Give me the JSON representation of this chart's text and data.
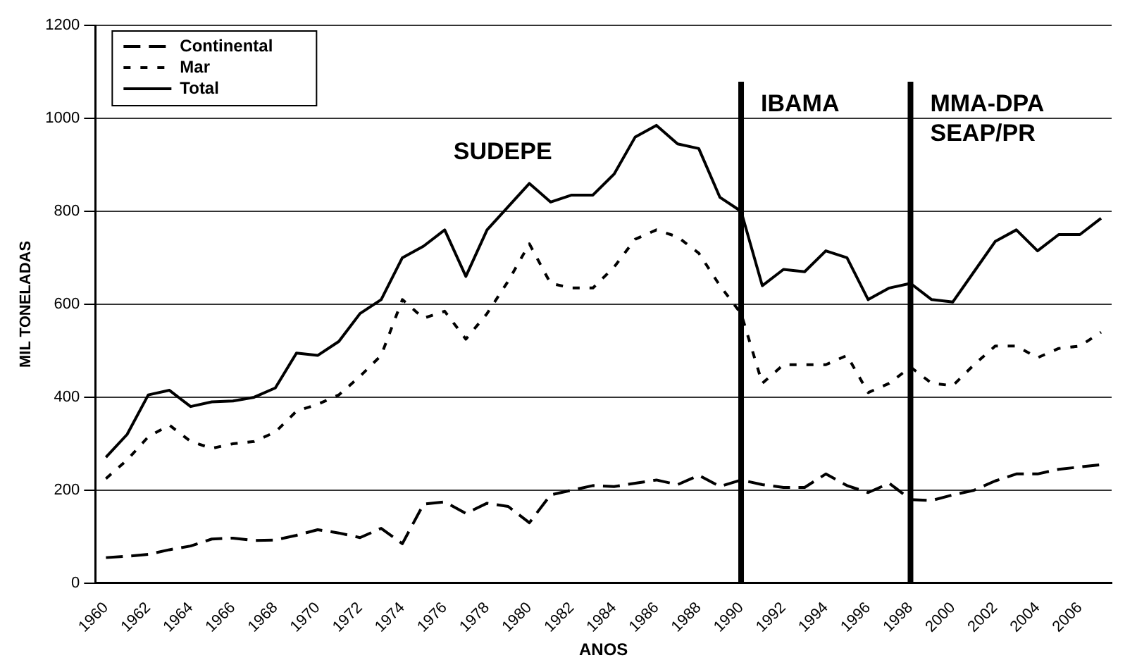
{
  "chart_data": {
    "type": "line",
    "xlabel": "ANOS",
    "ylabel": "MIL TONELADAS",
    "categories": [
      "1960",
      null,
      "1962",
      null,
      "1964",
      null,
      "1966",
      null,
      "1968",
      null,
      "1970",
      null,
      "1972",
      null,
      "1974",
      null,
      "1976",
      null,
      "1978",
      null,
      "1980",
      null,
      "1982",
      null,
      "1984",
      null,
      "1986",
      null,
      "1988",
      null,
      "1990",
      null,
      "1992",
      null,
      "1994",
      null,
      "1996",
      null,
      "1998",
      null,
      "2000",
      null,
      "2002",
      null,
      "2004",
      null,
      "2006",
      null
    ],
    "series": [
      {
        "name": "Continental",
        "color": "#000000",
        "line_style": "dashed",
        "values": [
          55,
          58,
          62,
          72,
          80,
          95,
          97,
          92,
          93,
          103,
          115,
          108,
          98,
          118,
          85,
          170,
          175,
          150,
          172,
          165,
          130,
          190,
          200,
          210,
          208,
          215,
          222,
          212,
          232,
          208,
          222,
          212,
          206,
          206,
          235,
          210,
          195,
          215,
          180,
          178,
          190,
          200,
          220,
          235,
          235,
          245,
          250,
          255
        ]
      },
      {
        "name": "Mar",
        "color": "#000000",
        "line_style": "dotted",
        "values": [
          225,
          265,
          315,
          340,
          305,
          290,
          300,
          305,
          325,
          370,
          385,
          405,
          445,
          490,
          610,
          570,
          585,
          525,
          580,
          650,
          730,
          645,
          635,
          635,
          680,
          740,
          760,
          745,
          710,
          640,
          580,
          430,
          470,
          470,
          470,
          490,
          410,
          430,
          465,
          430,
          425,
          470,
          510,
          510,
          485,
          505,
          510,
          540
        ]
      },
      {
        "name": "Total",
        "color": "#000000",
        "line_style": "solid",
        "values": [
          271,
          320,
          405,
          415,
          380,
          390,
          392,
          400,
          420,
          495,
          490,
          520,
          580,
          610,
          700,
          725,
          760,
          660,
          760,
          810,
          860,
          820,
          835,
          835,
          880,
          960,
          985,
          945,
          935,
          830,
          800,
          640,
          675,
          670,
          715,
          700,
          610,
          635,
          645,
          610,
          605,
          670,
          735,
          760,
          715,
          750,
          750,
          785
        ]
      }
    ],
    "ylim": [
      0,
      1200
    ],
    "yticks": [
      0,
      200,
      400,
      600,
      800,
      1000,
      1200
    ],
    "grid": "y",
    "legend": "top left",
    "marker": "none",
    "ref_lines": [
      {
        "axis": "x",
        "value": "1990",
        "label": "IBAMA",
        "color": "#000000"
      },
      {
        "axis": "x",
        "value": "1998",
        "label": "MMA-DPA\nSEAP/PR",
        "color": "#000000"
      }
    ],
    "annotations": [
      "SUDEPE"
    ]
  }
}
